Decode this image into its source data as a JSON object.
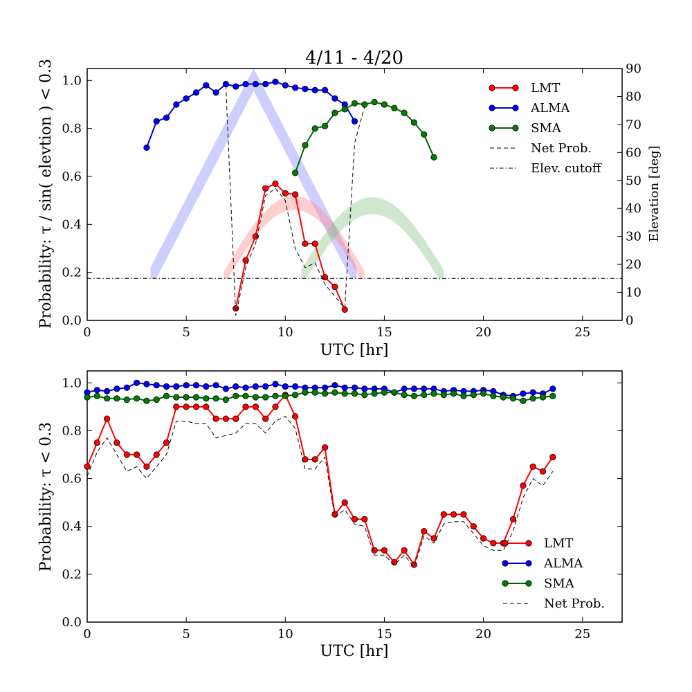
{
  "chart_data": [
    {
      "type": "line",
      "title": "4/11 - 4/20",
      "xlabel": "UTC [hr]",
      "ylabel": "Probability: τ / sin( elevtion ) < 0.3",
      "y2label": "Elevation [deg]",
      "xlim": [
        0,
        27
      ],
      "ylim": [
        0,
        1.05
      ],
      "y2lim": [
        0,
        90
      ],
      "xticks": [
        "0",
        "5",
        "10",
        "15",
        "20",
        "25"
      ],
      "yticks": [
        "0.0",
        "0.2",
        "0.4",
        "0.6",
        "0.8",
        "1.0"
      ],
      "y2ticks": [
        "0",
        "10",
        "20",
        "30",
        "40",
        "50",
        "60",
        "70",
        "80",
        "90"
      ],
      "legend_position": "top-right",
      "series": [
        {
          "name": "LMT",
          "color": "#ff0000",
          "marker_color": "#ff0000",
          "style": "solid-marker",
          "x": [
            7.5,
            8.0,
            8.5,
            9.0,
            9.5,
            10.0,
            10.5,
            11.0,
            11.5,
            12.0,
            12.5,
            13.0
          ],
          "y": [
            0.05,
            0.25,
            0.35,
            0.55,
            0.57,
            0.53,
            0.525,
            0.32,
            0.32,
            0.18,
            0.14,
            0.045
          ]
        },
        {
          "name": "ALMA",
          "color": "#0000cc",
          "marker_color": "#0000ff",
          "style": "solid-marker",
          "x": [
            3.0,
            3.5,
            4.0,
            4.5,
            5.0,
            5.5,
            6.0,
            6.5,
            7.0,
            7.5,
            8.0,
            8.5,
            9.0,
            9.5,
            10.0,
            10.5,
            11.0,
            11.5,
            12.0,
            12.5,
            13.0,
            13.5
          ],
          "y": [
            0.72,
            0.83,
            0.845,
            0.9,
            0.925,
            0.95,
            0.98,
            0.95,
            0.985,
            0.975,
            0.985,
            0.985,
            0.985,
            0.995,
            0.98,
            0.97,
            0.965,
            0.96,
            0.96,
            0.925,
            0.9,
            0.83
          ]
        },
        {
          "name": "SMA",
          "color": "#006600",
          "marker_color": "#008000",
          "style": "solid-marker",
          "x": [
            10.5,
            11.0,
            11.5,
            12.0,
            12.5,
            13.0,
            13.5,
            14.0,
            14.5,
            15.0,
            15.5,
            16.0,
            16.5,
            17.0,
            17.5
          ],
          "y": [
            0.615,
            0.73,
            0.8,
            0.81,
            0.865,
            0.88,
            0.905,
            0.9,
            0.91,
            0.9,
            0.885,
            0.865,
            0.825,
            0.775,
            0.68
          ]
        },
        {
          "name": "Net Prob.",
          "color": "#000000",
          "style": "dashed",
          "x": [
            7.0,
            7.5,
            8.0,
            8.5,
            9.0,
            9.5,
            10.0,
            10.5,
            11.0,
            11.5,
            12.0,
            12.5,
            13.0,
            13.5,
            14.0
          ],
          "y": [
            0.98,
            0.02,
            0.22,
            0.32,
            0.52,
            0.55,
            0.5,
            0.3,
            0.22,
            0.24,
            0.15,
            0.1,
            0.05,
            0.74,
            0.89
          ]
        },
        {
          "name": "Elev. cutoff",
          "color": "#000000",
          "style": "dashdot",
          "x": [
            0,
            27
          ],
          "y2": [
            15,
            15
          ]
        }
      ],
      "elevation_bands": [
        {
          "telescope": "ALMA",
          "color": "#8080ff",
          "x_start": 3.2,
          "x_peak": 8.4,
          "x_end": 13.6,
          "elev_peak": 86,
          "elev_edge": 15,
          "band_width": 8
        },
        {
          "telescope": "LMT",
          "color": "#ff8080",
          "x_start": 6.9,
          "x_peak": 10.45,
          "x_end": 14.0,
          "elev_peak": 42,
          "elev_edge": 15,
          "band_width": 5
        },
        {
          "telescope": "SMA",
          "color": "#80c080",
          "x_start": 10.8,
          "x_peak": 14.4,
          "x_end": 18.0,
          "elev_peak": 41,
          "elev_edge": 15,
          "band_width": 6
        }
      ]
    },
    {
      "type": "line",
      "title": "",
      "xlabel": "UTC [hr]",
      "ylabel": "Probability: τ < 0.3",
      "xlim": [
        0,
        27
      ],
      "ylim": [
        0,
        1.05
      ],
      "xticks": [
        "0",
        "5",
        "10",
        "15",
        "20",
        "25"
      ],
      "yticks": [
        "0.0",
        "0.2",
        "0.4",
        "0.6",
        "0.8",
        "1.0"
      ],
      "legend_position": "bottom-right",
      "series": [
        {
          "name": "LMT",
          "color": "#ff0000",
          "marker_color": "#ff0000",
          "style": "solid-marker",
          "x": [
            0,
            0.5,
            1,
            1.5,
            2,
            2.5,
            3,
            3.5,
            4,
            4.5,
            5,
            5.5,
            6,
            6.5,
            7,
            7.5,
            8,
            8.5,
            9,
            9.5,
            10,
            10.5,
            11,
            11.5,
            12,
            12.5,
            13,
            13.5,
            14,
            14.5,
            15,
            15.5,
            16,
            16.5,
            17,
            17.5,
            18,
            18.5,
            19,
            19.5,
            20,
            20.5,
            21,
            21.5,
            22,
            22.5,
            23,
            23.5
          ],
          "y": [
            0.65,
            0.75,
            0.85,
            0.75,
            0.7,
            0.7,
            0.65,
            0.7,
            0.75,
            0.9,
            0.9,
            0.9,
            0.9,
            0.85,
            0.85,
            0.85,
            0.9,
            0.9,
            0.85,
            0.9,
            0.95,
            0.86,
            0.68,
            0.68,
            0.73,
            0.45,
            0.5,
            0.43,
            0.43,
            0.3,
            0.3,
            0.25,
            0.3,
            0.24,
            0.38,
            0.35,
            0.45,
            0.45,
            0.45,
            0.4,
            0.35,
            0.33,
            0.33,
            0.43,
            0.57,
            0.65,
            0.63,
            0.69
          ]
        },
        {
          "name": "ALMA",
          "color": "#0000cc",
          "marker_color": "#0000ff",
          "style": "solid-marker",
          "x": [
            0,
            0.5,
            1,
            1.5,
            2,
            2.5,
            3,
            3.5,
            4,
            4.5,
            5,
            5.5,
            6,
            6.5,
            7,
            7.5,
            8,
            8.5,
            9,
            9.5,
            10,
            10.5,
            11,
            11.5,
            12,
            12.5,
            13,
            13.5,
            14,
            14.5,
            15,
            15.5,
            16,
            16.5,
            17,
            17.5,
            18,
            18.5,
            19,
            19.5,
            20,
            20.5,
            21,
            21.5,
            22,
            22.5,
            23,
            23.5
          ],
          "y": [
            0.96,
            0.97,
            0.965,
            0.975,
            0.98,
            1.0,
            0.995,
            0.99,
            0.985,
            0.985,
            0.99,
            0.99,
            0.985,
            0.99,
            0.975,
            0.985,
            0.98,
            0.985,
            0.985,
            0.995,
            0.985,
            0.985,
            0.98,
            0.98,
            0.98,
            0.99,
            0.98,
            0.98,
            0.975,
            0.975,
            0.975,
            0.96,
            0.975,
            0.975,
            0.975,
            0.975,
            0.965,
            0.97,
            0.965,
            0.965,
            0.97,
            0.965,
            0.95,
            0.945,
            0.955,
            0.96,
            0.955,
            0.975
          ]
        },
        {
          "name": "SMA",
          "color": "#006600",
          "marker_color": "#008000",
          "style": "solid-marker",
          "x": [
            0,
            0.5,
            1,
            1.5,
            2,
            2.5,
            3,
            3.5,
            4,
            4.5,
            5,
            5.5,
            6,
            6.5,
            7,
            7.5,
            8,
            8.5,
            9,
            9.5,
            10,
            10.5,
            11,
            11.5,
            12,
            12.5,
            13,
            13.5,
            14,
            14.5,
            15,
            15.5,
            16,
            16.5,
            17,
            17.5,
            18,
            18.5,
            19,
            19.5,
            20,
            20.5,
            21,
            21.5,
            22,
            22.5,
            23,
            23.5
          ],
          "y": [
            0.94,
            0.945,
            0.935,
            0.935,
            0.93,
            0.935,
            0.925,
            0.93,
            0.945,
            0.94,
            0.94,
            0.94,
            0.935,
            0.935,
            0.93,
            0.945,
            0.945,
            0.94,
            0.94,
            0.945,
            0.945,
            0.95,
            0.96,
            0.96,
            0.955,
            0.96,
            0.955,
            0.955,
            0.95,
            0.955,
            0.96,
            0.96,
            0.95,
            0.945,
            0.95,
            0.955,
            0.95,
            0.955,
            0.945,
            0.95,
            0.955,
            0.945,
            0.94,
            0.935,
            0.925,
            0.935,
            0.94,
            0.945
          ]
        },
        {
          "name": "Net Prob.",
          "color": "#000000",
          "style": "dashed",
          "x": [
            0,
            0.5,
            1,
            1.5,
            2,
            2.5,
            3,
            3.5,
            4,
            4.5,
            5,
            5.5,
            6,
            6.5,
            7,
            7.5,
            8,
            8.5,
            9,
            9.5,
            10,
            10.5,
            11,
            11.5,
            12,
            12.5,
            13,
            13.5,
            14,
            14.5,
            15,
            15.5,
            16,
            16.5,
            17,
            17.5,
            18,
            18.5,
            19,
            19.5,
            20,
            20.5,
            21,
            21.5,
            22,
            22.5,
            23,
            23.5
          ],
          "y": [
            0.61,
            0.71,
            0.77,
            0.7,
            0.63,
            0.65,
            0.6,
            0.65,
            0.7,
            0.84,
            0.84,
            0.83,
            0.83,
            0.77,
            0.78,
            0.79,
            0.83,
            0.83,
            0.79,
            0.84,
            0.86,
            0.81,
            0.64,
            0.64,
            0.69,
            0.44,
            0.47,
            0.41,
            0.4,
            0.28,
            0.28,
            0.24,
            0.28,
            0.23,
            0.36,
            0.33,
            0.41,
            0.42,
            0.42,
            0.37,
            0.32,
            0.3,
            0.3,
            0.38,
            0.52,
            0.6,
            0.57,
            0.63
          ]
        }
      ]
    }
  ]
}
